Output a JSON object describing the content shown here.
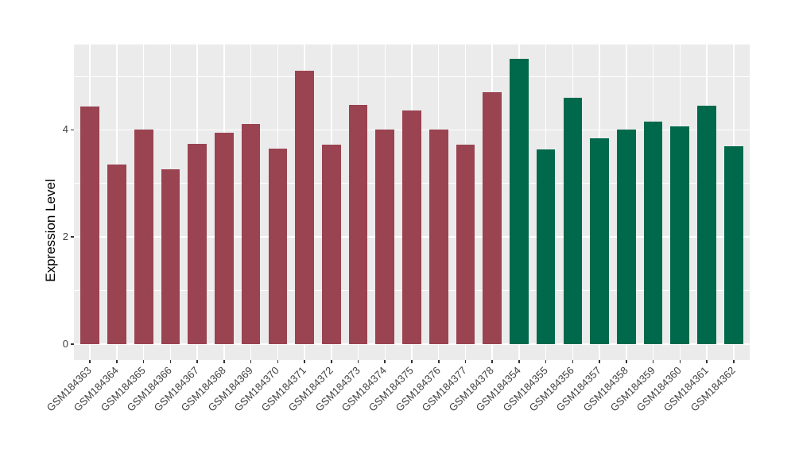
{
  "chart_data": {
    "type": "bar",
    "title": "",
    "xlabel": "",
    "ylabel": "Expression Level",
    "categories": [
      "GSM184363",
      "GSM184364",
      "GSM184365",
      "GSM184366",
      "GSM184367",
      "GSM184368",
      "GSM184369",
      "GSM184370",
      "GSM184371",
      "GSM184372",
      "GSM184373",
      "GSM184374",
      "GSM184375",
      "GSM184376",
      "GSM184377",
      "GSM184378",
      "GSM184354",
      "GSM184355",
      "GSM184356",
      "GSM184357",
      "GSM184358",
      "GSM184359",
      "GSM184360",
      "GSM184361",
      "GSM184362"
    ],
    "values": [
      4.43,
      3.36,
      4.01,
      3.27,
      3.74,
      3.94,
      4.11,
      3.65,
      5.1,
      3.72,
      4.46,
      4.01,
      4.36,
      4.0,
      3.72,
      4.71,
      5.32,
      3.63,
      4.6,
      3.85,
      4.01,
      4.16,
      4.07,
      4.45,
      3.7
    ],
    "bar_colors": [
      "#9A4351",
      "#9A4351",
      "#9A4351",
      "#9A4351",
      "#9A4351",
      "#9A4351",
      "#9A4351",
      "#9A4351",
      "#9A4351",
      "#9A4351",
      "#9A4351",
      "#9A4351",
      "#9A4351",
      "#9A4351",
      "#9A4351",
      "#9A4351",
      "#00694B",
      "#00694B",
      "#00694B",
      "#00694B",
      "#00694B",
      "#00694B",
      "#00694B",
      "#00694B",
      "#00694B"
    ],
    "group_colors": {
      "left_group": "#9A4351",
      "right_group": "#00694B"
    },
    "ytick_values": [
      0,
      2,
      4
    ],
    "ytick_labels": [
      "0",
      "2",
      "4"
    ],
    "ytick_minor_values": [
      1,
      3,
      5
    ],
    "ylim": [
      -0.3,
      5.6
    ],
    "bar_width_fraction": 0.7,
    "x_tick_rotation_deg": 45,
    "grid": "on",
    "legend": "none",
    "panel_background": "#EBEBEB",
    "figure_background": "#FFFFFF",
    "grid_color": "#FFFFFF",
    "axis_text_color": "#404040",
    "axis_title_color": "#000000"
  }
}
